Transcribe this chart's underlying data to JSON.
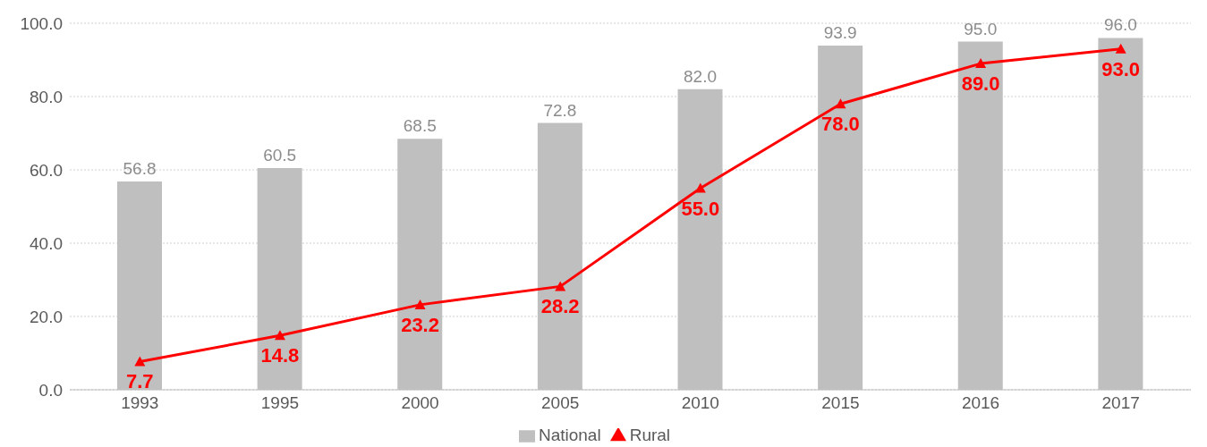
{
  "chart_data": {
    "type": "bar",
    "categories": [
      "1993",
      "1995",
      "2000",
      "2005",
      "2010",
      "2015",
      "2016",
      "2017"
    ],
    "series": [
      {
        "name": "National",
        "color": "#bfbfbf",
        "values": [
          56.8,
          60.5,
          68.5,
          72.8,
          82.0,
          93.9,
          95.0,
          96.0
        ],
        "value_labels": [
          "56.8",
          "60.5",
          "68.5",
          "72.8",
          "82.0",
          "93.9",
          "95.0",
          "96.0"
        ]
      },
      {
        "name": "Rural",
        "type": "line",
        "color": "#ff0000",
        "marker": "triangle",
        "line_style": "solid",
        "values": [
          7.7,
          14.8,
          23.2,
          28.2,
          55.0,
          78.0,
          89.0,
          93.0
        ],
        "value_labels": [
          "7.7",
          "14.8",
          "23.2",
          "28.2",
          "55.0",
          "78.0",
          "89.0",
          "93.0"
        ]
      }
    ],
    "ylim": [
      0,
      100
    ],
    "yticks": [
      {
        "value": 0,
        "label": "0.0"
      },
      {
        "value": 20,
        "label": "20.0"
      },
      {
        "value": 40,
        "label": "40.0"
      },
      {
        "value": 60,
        "label": "60.0"
      },
      {
        "value": 80,
        "label": "80.0"
      },
      {
        "value": 100,
        "label": "100.0"
      }
    ],
    "grid": "y",
    "legend": "bottom"
  }
}
